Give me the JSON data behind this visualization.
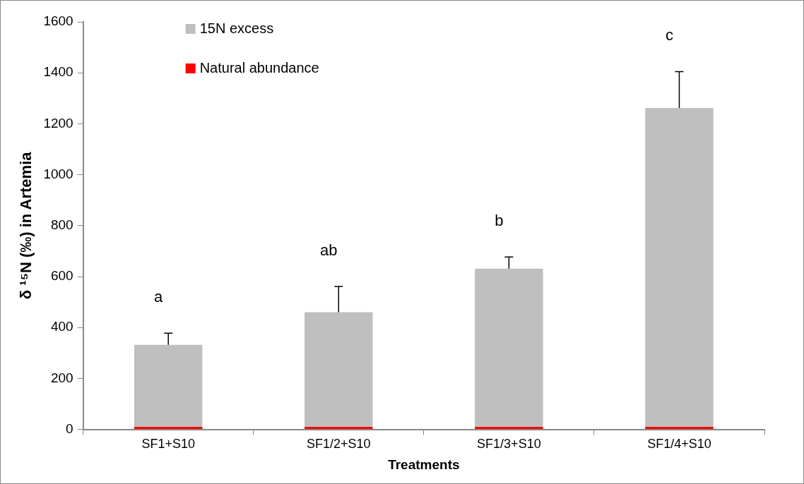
{
  "chart_data": {
    "type": "bar",
    "stacked": true,
    "xlabel": "Treatments",
    "ylabel": "δ ¹⁵N (‰) in Artemia",
    "categories": [
      "SF1+S10",
      "SF1/2+S10",
      "SF1/3+S10",
      "SF1/4+S10"
    ],
    "series": [
      {
        "name": "Natural abundance",
        "color": "#ff0000",
        "values": [
          10,
          10,
          10,
          10
        ]
      },
      {
        "name": "15N excess",
        "color": "#bfbfbf",
        "values": [
          322,
          450,
          621,
          1252
        ],
        "errors": [
          [
            332,
            378
          ],
          [
            460,
            561
          ],
          [
            631,
            677
          ],
          [
            1262,
            1405
          ]
        ]
      }
    ],
    "ylim": [
      0,
      1600
    ],
    "yticks": [
      0,
      200,
      400,
      600,
      800,
      1000,
      1200,
      1400,
      1600
    ],
    "grid": false,
    "legend": "top left",
    "annotations": [
      "a",
      "ab",
      "b",
      "c"
    ]
  }
}
